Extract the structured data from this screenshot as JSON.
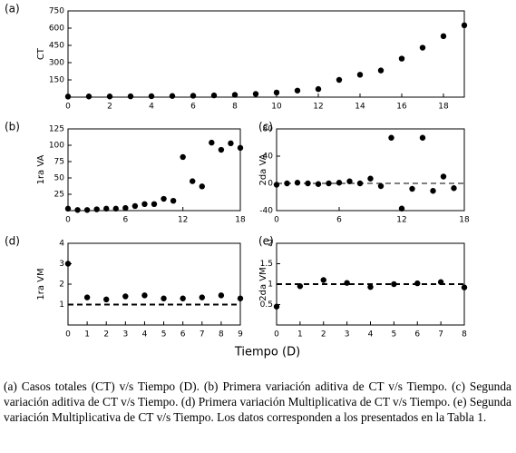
{
  "figure": {
    "xlabel": "Tiempo (D)",
    "caption": "(a) Casos totales (CT) v/s Tiempo (D). (b) Primera variación aditiva de CT v/s Tiempo. (c) Segunda variación aditiva de CT v/s Tiempo. (d) Primera variación Multiplicativa de CT v/s Tiempo. (e) Segunda variación Multiplicativa de CT v/s Tiempo. Los datos corresponden a los presentados en la Tabla 1."
  },
  "chart_data": [
    {
      "type": "scatter",
      "panel": "(a)",
      "ylabel": "CT",
      "color": "#000000",
      "x": [
        0,
        1,
        2,
        3,
        4,
        5,
        6,
        7,
        8,
        9,
        10,
        11,
        12,
        13,
        14,
        15,
        16,
        17,
        18,
        19
      ],
      "values": [
        5,
        6,
        6,
        7,
        8,
        10,
        12,
        15,
        20,
        28,
        40,
        57,
        70,
        150,
        195,
        232,
        335,
        430,
        530,
        625
      ],
      "xlim": [
        0,
        19
      ],
      "ylim": [
        0,
        750
      ],
      "xticks": [
        0,
        2,
        4,
        6,
        8,
        10,
        12,
        14,
        16,
        18
      ],
      "yticks": [
        150,
        300,
        450,
        600,
        750
      ]
    },
    {
      "type": "scatter",
      "panel": "(b)",
      "ylabel": "1ra VA",
      "color": "#000000",
      "x": [
        0,
        1,
        2,
        3,
        4,
        5,
        6,
        7,
        8,
        9,
        10,
        11,
        12,
        13,
        14,
        15,
        16,
        17,
        18
      ],
      "values": [
        3,
        1,
        1,
        2,
        3,
        3,
        4,
        7,
        10,
        10,
        18,
        15,
        82,
        45,
        37,
        104,
        93,
        103,
        96
      ],
      "xlim": [
        0,
        18
      ],
      "ylim": [
        0,
        125
      ],
      "xticks": [
        0,
        6,
        12,
        18
      ],
      "yticks": [
        25,
        50,
        75,
        100,
        125
      ]
    },
    {
      "type": "scatter",
      "panel": "(c)",
      "ylabel": "2da VA",
      "color": "#000000",
      "reference_line": 0,
      "x": [
        0,
        1,
        2,
        3,
        4,
        5,
        6,
        7,
        8,
        9,
        10,
        11,
        12,
        13,
        14,
        15,
        16,
        17
      ],
      "values": [
        -2,
        0,
        1,
        0,
        -1,
        0,
        1,
        3,
        0,
        7,
        -4,
        67,
        -37,
        -8,
        67,
        -11,
        10,
        -7
      ],
      "xlim": [
        0,
        18
      ],
      "ylim": [
        -40,
        80
      ],
      "xticks": [
        0,
        6,
        12,
        18
      ],
      "yticks": [
        -40,
        0,
        40,
        80
      ]
    },
    {
      "type": "scatter",
      "panel": "(d)",
      "ylabel": "1ra VM",
      "color": "#000000",
      "reference_line": 1,
      "x": [
        0,
        1,
        2,
        3,
        4,
        5,
        6,
        7,
        8,
        9
      ],
      "values": [
        3.0,
        1.35,
        1.25,
        1.4,
        1.45,
        1.3,
        1.3,
        1.35,
        1.45,
        1.3
      ],
      "xlim": [
        0,
        9
      ],
      "ylim": [
        0,
        4
      ],
      "xticks": [
        0,
        1,
        2,
        3,
        4,
        5,
        6,
        7,
        8,
        9
      ],
      "yticks": [
        1,
        2,
        3,
        4
      ]
    },
    {
      "type": "scatter",
      "panel": "(e)",
      "ylabel": "2da VM",
      "color": "#000000",
      "reference_line": 1,
      "x": [
        0,
        1,
        2,
        3,
        4,
        5,
        6,
        7,
        8
      ],
      "values": [
        0.45,
        0.95,
        1.1,
        1.03,
        0.93,
        1.0,
        1.02,
        1.05,
        0.92
      ],
      "xlim": [
        0,
        8
      ],
      "ylim": [
        0,
        2
      ],
      "xticks": [
        0,
        1,
        2,
        3,
        4,
        5,
        6,
        7,
        8
      ],
      "yticks": [
        0.5,
        1,
        1.5,
        2
      ]
    }
  ]
}
